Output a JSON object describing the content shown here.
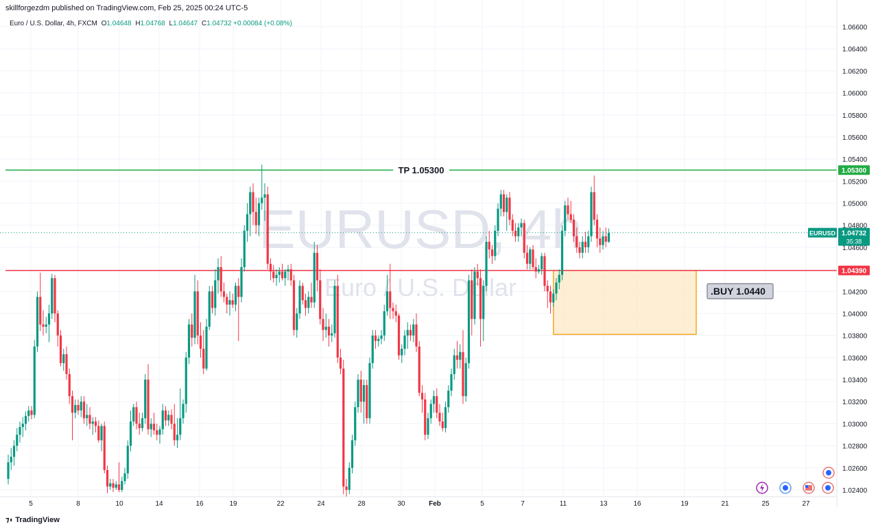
{
  "header": {
    "published": "skillforgezdm published on TradingView.com, Feb 25, 2025 00:24 UTC-5",
    "symbol_desc": "Euro / U.S. Dollar, 4h, FXCM",
    "o_label": "O",
    "o_value": "1.04648",
    "h_label": "H",
    "h_value": "1.04768",
    "l_label": "L",
    "l_value": "1.04647",
    "c_label": "C",
    "c_value": "1.04732",
    "change": "+0.00084 (+0.08%)"
  },
  "watermark": {
    "title": "EURUSD, 4h",
    "subtitle": "Euro / U.S. Dollar"
  },
  "footer": {
    "brand": "TradingView"
  },
  "colors": {
    "up": "#089981",
    "down": "#f23645",
    "tp": "#22ab45",
    "entry": "#f23645",
    "zone_fill": "#fde8c4",
    "zone_border": "#f5a623"
  },
  "chart_data": {
    "type": "candlestick",
    "symbol": "EURUSD",
    "timeframe": "4h",
    "y_range": [
      1.0232,
      1.0673
    ],
    "y_ticks": [
      "1.06600",
      "1.06400",
      "1.06200",
      "1.06000",
      "1.05800",
      "1.05600",
      "1.05400",
      "1.05200",
      "1.05000",
      "1.04800",
      "1.04600",
      "1.04400",
      "1.04200",
      "1.04000",
      "1.03800",
      "1.03600",
      "1.03400",
      "1.03200",
      "1.03000",
      "1.02800",
      "1.02600",
      "1.02400"
    ],
    "x_ticks": [
      "5",
      "8",
      "10",
      "14",
      "16",
      "19",
      "22",
      "24",
      "28",
      "30",
      "Feb",
      "5",
      "7",
      "11",
      "13",
      "16",
      "19",
      "21",
      "25",
      "27"
    ],
    "last_price": {
      "label": "EURUSD",
      "value": "1.04732",
      "countdown": "35:38",
      "price": 1.04732
    },
    "levels": [
      {
        "name": "tp",
        "label": "TP 1.05300",
        "badge": "1.05300",
        "price": 1.053
      },
      {
        "name": "entry",
        "badge": "1.04390",
        "price": 1.0439
      }
    ],
    "buy_zone": {
      "label": ".BUY 1.0440",
      "top": 1.0439,
      "bottom": 1.0381,
      "start_bar": 187,
      "end_bar": 236
    },
    "candles": [
      [
        1.025,
        1.0272,
        1.0245,
        1.0265
      ],
      [
        1.0265,
        1.0278,
        1.0258,
        1.027
      ],
      [
        1.027,
        1.0285,
        1.0262,
        1.028
      ],
      [
        1.028,
        1.0296,
        1.0275,
        1.029
      ],
      [
        1.029,
        1.0302,
        1.0283,
        1.0297
      ],
      [
        1.0297,
        1.0306,
        1.0288,
        1.03
      ],
      [
        1.03,
        1.0311,
        1.0294,
        1.0307
      ],
      [
        1.0307,
        1.0316,
        1.0302,
        1.0312
      ],
      [
        1.0312,
        1.0316,
        1.0304,
        1.0308
      ],
      [
        1.0308,
        1.0376,
        1.0305,
        1.037
      ],
      [
        1.037,
        1.042,
        1.0365,
        1.0415
      ],
      [
        1.0415,
        1.0437,
        1.0384,
        1.039
      ],
      [
        1.039,
        1.0403,
        1.038,
        1.0388
      ],
      [
        1.0388,
        1.0397,
        1.0382,
        1.039
      ],
      [
        1.039,
        1.0408,
        1.0374,
        1.04
      ],
      [
        1.04,
        1.0436,
        1.0395,
        1.0432
      ],
      [
        1.0432,
        1.0435,
        1.0392,
        1.04
      ],
      [
        1.04,
        1.0403,
        1.037,
        1.038
      ],
      [
        1.038,
        1.0385,
        1.0352,
        1.0355
      ],
      [
        1.0355,
        1.0368,
        1.0348,
        1.0363
      ],
      [
        1.0363,
        1.037,
        1.034,
        1.0345
      ],
      [
        1.0345,
        1.035,
        1.0318,
        1.0325
      ],
      [
        1.0325,
        1.033,
        1.0285,
        1.031
      ],
      [
        1.031,
        1.0322,
        1.0305,
        1.0317
      ],
      [
        1.0317,
        1.0322,
        1.0308,
        1.0312
      ],
      [
        1.0312,
        1.0325,
        1.0306,
        1.032
      ],
      [
        1.032,
        1.0325,
        1.03,
        1.0305
      ],
      [
        1.0305,
        1.0318,
        1.0298,
        1.0308
      ],
      [
        1.0308,
        1.0315,
        1.0295,
        1.03
      ],
      [
        1.03,
        1.0306,
        1.029,
        1.0302
      ],
      [
        1.0302,
        1.0306,
        1.0292,
        1.0298
      ],
      [
        1.0298,
        1.0303,
        1.0283,
        1.0285
      ],
      [
        1.0285,
        1.03,
        1.0275,
        1.0298
      ],
      [
        1.0298,
        1.0302,
        1.0255,
        1.0258
      ],
      [
        1.0258,
        1.0262,
        1.0237,
        1.0243
      ],
      [
        1.0243,
        1.025,
        1.024,
        1.0246
      ],
      [
        1.0246,
        1.025,
        1.0238,
        1.0242
      ],
      [
        1.0242,
        1.0248,
        1.024,
        1.0245
      ],
      [
        1.0245,
        1.0265,
        1.0238,
        1.024
      ],
      [
        1.024,
        1.0252,
        1.0238,
        1.0248
      ],
      [
        1.0248,
        1.026,
        1.0245,
        1.0255
      ],
      [
        1.0255,
        1.0285,
        1.025,
        1.028
      ],
      [
        1.028,
        1.0312,
        1.0275,
        1.0302
      ],
      [
        1.0302,
        1.0318,
        1.0298,
        1.0315
      ],
      [
        1.0315,
        1.032,
        1.0295,
        1.03
      ],
      [
        1.03,
        1.031,
        1.029,
        1.0296
      ],
      [
        1.0296,
        1.031,
        1.0293,
        1.0305
      ],
      [
        1.0305,
        1.0345,
        1.03,
        1.034
      ],
      [
        1.034,
        1.0354,
        1.029,
        1.0295
      ],
      [
        1.0295,
        1.0305,
        1.0288,
        1.03
      ],
      [
        1.03,
        1.031,
        1.029,
        1.0294
      ],
      [
        1.0294,
        1.03,
        1.0285,
        1.029
      ],
      [
        1.029,
        1.0298,
        1.0282,
        1.0295
      ],
      [
        1.0295,
        1.0318,
        1.029,
        1.0312
      ],
      [
        1.0312,
        1.0316,
        1.0298,
        1.0303
      ],
      [
        1.0303,
        1.0312,
        1.0298,
        1.0308
      ],
      [
        1.0308,
        1.0313,
        1.0295,
        1.03
      ],
      [
        1.03,
        1.0318,
        1.028,
        1.0285
      ],
      [
        1.0285,
        1.0305,
        1.0278,
        1.029
      ],
      [
        1.029,
        1.0332,
        1.0285,
        1.0305
      ],
      [
        1.0305,
        1.0322,
        1.03,
        1.0318
      ],
      [
        1.0318,
        1.0365,
        1.031,
        1.036
      ],
      [
        1.036,
        1.0395,
        1.0354,
        1.039
      ],
      [
        1.039,
        1.04,
        1.037,
        1.0378
      ],
      [
        1.0378,
        1.0435,
        1.0372,
        1.042
      ],
      [
        1.042,
        1.043,
        1.0372,
        1.038
      ],
      [
        1.038,
        1.0392,
        1.036,
        1.0368
      ],
      [
        1.0368,
        1.0385,
        1.0345,
        1.035
      ],
      [
        1.035,
        1.0395,
        1.0348,
        1.0388
      ],
      [
        1.0388,
        1.0425,
        1.0385,
        1.042
      ],
      [
        1.042,
        1.0425,
        1.04,
        1.0405
      ],
      [
        1.0405,
        1.044,
        1.0398,
        1.043
      ],
      [
        1.043,
        1.045,
        1.0418,
        1.0442
      ],
      [
        1.0442,
        1.0452,
        1.0415,
        1.042
      ],
      [
        1.042,
        1.0428,
        1.041,
        1.0415
      ],
      [
        1.0415,
        1.0418,
        1.04,
        1.0408
      ],
      [
        1.0408,
        1.042,
        1.0398,
        1.0412
      ],
      [
        1.0412,
        1.0418,
        1.0405,
        1.0408
      ],
      [
        1.0408,
        1.0428,
        1.0402,
        1.0425
      ],
      [
        1.0425,
        1.0432,
        1.0375,
        1.0415
      ],
      [
        1.0415,
        1.045,
        1.041,
        1.0442
      ],
      [
        1.0442,
        1.048,
        1.0438,
        1.0475
      ],
      [
        1.0475,
        1.05,
        1.0465,
        1.049
      ],
      [
        1.049,
        1.0515,
        1.047,
        1.051
      ],
      [
        1.051,
        1.0518,
        1.048,
        1.0492
      ],
      [
        1.0492,
        1.0505,
        1.0472,
        1.048
      ],
      [
        1.048,
        1.0505,
        1.047,
        1.05
      ],
      [
        1.05,
        1.0535,
        1.0494,
        1.0505
      ],
      [
        1.0505,
        1.0518,
        1.0484,
        1.0508
      ],
      [
        1.0508,
        1.0515,
        1.044,
        1.0445
      ],
      [
        1.0445,
        1.045,
        1.043,
        1.0438
      ],
      [
        1.0438,
        1.0444,
        1.0428,
        1.0432
      ],
      [
        1.0432,
        1.044,
        1.0425,
        1.0435
      ],
      [
        1.0435,
        1.0442,
        1.0428,
        1.0438
      ],
      [
        1.0438,
        1.0445,
        1.043,
        1.0432
      ],
      [
        1.0432,
        1.044,
        1.0425,
        1.0438
      ],
      [
        1.0438,
        1.0444,
        1.043,
        1.044
      ],
      [
        1.044,
        1.0445,
        1.0425,
        1.043
      ],
      [
        1.043,
        1.0435,
        1.038,
        1.0385
      ],
      [
        1.0385,
        1.0405,
        1.0378,
        1.04
      ],
      [
        1.04,
        1.043,
        1.0395,
        1.0425
      ],
      [
        1.0425,
        1.0428,
        1.0408,
        1.0412
      ],
      [
        1.0412,
        1.0418,
        1.0398,
        1.0405
      ],
      [
        1.0405,
        1.042,
        1.04,
        1.0415
      ],
      [
        1.0415,
        1.0428,
        1.0405,
        1.041
      ],
      [
        1.041,
        1.0465,
        1.0405,
        1.0455
      ],
      [
        1.0455,
        1.0462,
        1.042,
        1.043
      ],
      [
        1.043,
        1.044,
        1.039,
        1.0395
      ],
      [
        1.0395,
        1.0405,
        1.0375,
        1.0385
      ],
      [
        1.0385,
        1.04,
        1.0378,
        1.0388
      ],
      [
        1.0388,
        1.0395,
        1.037,
        1.038
      ],
      [
        1.038,
        1.039,
        1.0374,
        1.0382
      ],
      [
        1.0382,
        1.043,
        1.0378,
        1.0425
      ],
      [
        1.0425,
        1.0435,
        1.0355,
        1.036
      ],
      [
        1.036,
        1.0368,
        1.0345,
        1.035
      ],
      [
        1.035,
        1.0358,
        1.0236,
        1.0243
      ],
      [
        1.0243,
        1.025,
        1.0234,
        1.024
      ],
      [
        1.024,
        1.0265,
        1.0236,
        1.026
      ],
      [
        1.026,
        1.029,
        1.0255,
        1.0285
      ],
      [
        1.0285,
        1.032,
        1.028,
        1.0315
      ],
      [
        1.0315,
        1.0345,
        1.031,
        1.034
      ],
      [
        1.034,
        1.0348,
        1.031,
        1.032
      ],
      [
        1.032,
        1.034,
        1.03,
        1.0335
      ],
      [
        1.0335,
        1.034,
        1.03,
        1.0305
      ],
      [
        1.0305,
        1.036,
        1.03,
        1.0355
      ],
      [
        1.0355,
        1.0385,
        1.035,
        1.038
      ],
      [
        1.038,
        1.0385,
        1.0368,
        1.0375
      ],
      [
        1.0375,
        1.038,
        1.037,
        1.0377
      ],
      [
        1.0377,
        1.0385,
        1.0372,
        1.038
      ],
      [
        1.038,
        1.0408,
        1.0375,
        1.0402
      ],
      [
        1.0402,
        1.0435,
        1.0398,
        1.042
      ],
      [
        1.042,
        1.0445,
        1.0395,
        1.0405
      ],
      [
        1.0405,
        1.041,
        1.0395,
        1.0402
      ],
      [
        1.0402,
        1.0408,
        1.0392,
        1.0398
      ],
      [
        1.0398,
        1.04,
        1.0358,
        1.0362
      ],
      [
        1.0362,
        1.0372,
        1.0355,
        1.0368
      ],
      [
        1.0368,
        1.0385,
        1.0362,
        1.038
      ],
      [
        1.038,
        1.0392,
        1.0368,
        1.0385
      ],
      [
        1.0385,
        1.039,
        1.0375,
        1.038
      ],
      [
        1.038,
        1.0395,
        1.0374,
        1.039
      ],
      [
        1.039,
        1.04,
        1.0365,
        1.037
      ],
      [
        1.037,
        1.0375,
        1.0325,
        1.0328
      ],
      [
        1.0328,
        1.0335,
        1.031,
        1.0322
      ],
      [
        1.0322,
        1.0328,
        1.0285,
        1.029
      ],
      [
        1.029,
        1.031,
        1.0286,
        1.0305
      ],
      [
        1.0305,
        1.0322,
        1.03,
        1.0318
      ],
      [
        1.0318,
        1.033,
        1.031,
        1.0325
      ],
      [
        1.0325,
        1.0332,
        1.0305,
        1.031
      ],
      [
        1.031,
        1.0318,
        1.0298,
        1.0302
      ],
      [
        1.0302,
        1.031,
        1.0293,
        1.0296
      ],
      [
        1.0296,
        1.032,
        1.0292,
        1.0315
      ],
      [
        1.0315,
        1.0335,
        1.031,
        1.033
      ],
      [
        1.033,
        1.035,
        1.0325,
        1.0345
      ],
      [
        1.0345,
        1.0368,
        1.034,
        1.0362
      ],
      [
        1.0362,
        1.0375,
        1.035,
        1.0358
      ],
      [
        1.0358,
        1.0372,
        1.035,
        1.0365
      ],
      [
        1.0365,
        1.0385,
        1.0318,
        1.0325
      ],
      [
        1.0325,
        1.036,
        1.032,
        1.0355
      ],
      [
        1.0355,
        1.0435,
        1.035,
        1.043
      ],
      [
        1.043,
        1.044,
        1.038,
        1.0395
      ],
      [
        1.0395,
        1.0442,
        1.039,
        1.0438
      ],
      [
        1.0438,
        1.0445,
        1.0425,
        1.0432
      ],
      [
        1.0432,
        1.044,
        1.037,
        1.0395
      ],
      [
        1.0395,
        1.043,
        1.0375,
        1.0425
      ],
      [
        1.0425,
        1.047,
        1.042,
        1.0465
      ],
      [
        1.0465,
        1.0475,
        1.045,
        1.0458
      ],
      [
        1.0458,
        1.0462,
        1.0445,
        1.0452
      ],
      [
        1.0452,
        1.048,
        1.0448,
        1.0475
      ],
      [
        1.0475,
        1.05,
        1.047,
        1.0495
      ],
      [
        1.0495,
        1.0512,
        1.0488,
        1.0508
      ],
      [
        1.0508,
        1.0512,
        1.0488,
        1.0492
      ],
      [
        1.0492,
        1.0508,
        1.0475,
        1.0505
      ],
      [
        1.0505,
        1.051,
        1.048,
        1.0485
      ],
      [
        1.0485,
        1.049,
        1.047,
        1.0475
      ],
      [
        1.0475,
        1.0482,
        1.0465,
        1.047
      ],
      [
        1.047,
        1.0482,
        1.0465,
        1.0478
      ],
      [
        1.0478,
        1.0486,
        1.047,
        1.0482
      ],
      [
        1.0482,
        1.0485,
        1.045,
        1.0455
      ],
      [
        1.0455,
        1.0462,
        1.044,
        1.0445
      ],
      [
        1.0445,
        1.046,
        1.044,
        1.0458
      ],
      [
        1.0458,
        1.0462,
        1.044,
        1.0442
      ],
      [
        1.0442,
        1.045,
        1.0432,
        1.0438
      ],
      [
        1.0438,
        1.0444,
        1.0436,
        1.044
      ],
      [
        1.044,
        1.0455,
        1.0435,
        1.0452
      ],
      [
        1.0452,
        1.0455,
        1.042,
        1.0425
      ],
      [
        1.0425,
        1.043,
        1.0405,
        1.042
      ],
      [
        1.042,
        1.0425,
        1.04,
        1.041
      ],
      [
        1.041,
        1.0422,
        1.0406,
        1.0418
      ],
      [
        1.0418,
        1.0432,
        1.0412,
        1.0428
      ],
      [
        1.0428,
        1.044,
        1.0422,
        1.0435
      ],
      [
        1.0435,
        1.048,
        1.043,
        1.0475
      ],
      [
        1.0475,
        1.0502,
        1.047,
        1.0498
      ],
      [
        1.0498,
        1.0505,
        1.0485,
        1.049
      ],
      [
        1.049,
        1.0502,
        1.0482,
        1.0485
      ],
      [
        1.0485,
        1.049,
        1.0465,
        1.047
      ],
      [
        1.047,
        1.0478,
        1.0455,
        1.046
      ],
      [
        1.046,
        1.0465,
        1.045,
        1.0455
      ],
      [
        1.0455,
        1.047,
        1.045,
        1.0465
      ],
      [
        1.0465,
        1.0474,
        1.0455,
        1.046
      ],
      [
        1.046,
        1.0475,
        1.0455,
        1.047
      ],
      [
        1.047,
        1.0515,
        1.0465,
        1.051
      ],
      [
        1.051,
        1.0525,
        1.048,
        1.0485
      ],
      [
        1.0485,
        1.049,
        1.046,
        1.0468
      ],
      [
        1.0468,
        1.0478,
        1.0455,
        1.0462
      ],
      [
        1.0462,
        1.0475,
        1.0458,
        1.047
      ],
      [
        1.047,
        1.0478,
        1.046,
        1.0465
      ],
      [
        1.0465,
        1.0477,
        1.0464,
        1.0473
      ]
    ]
  }
}
